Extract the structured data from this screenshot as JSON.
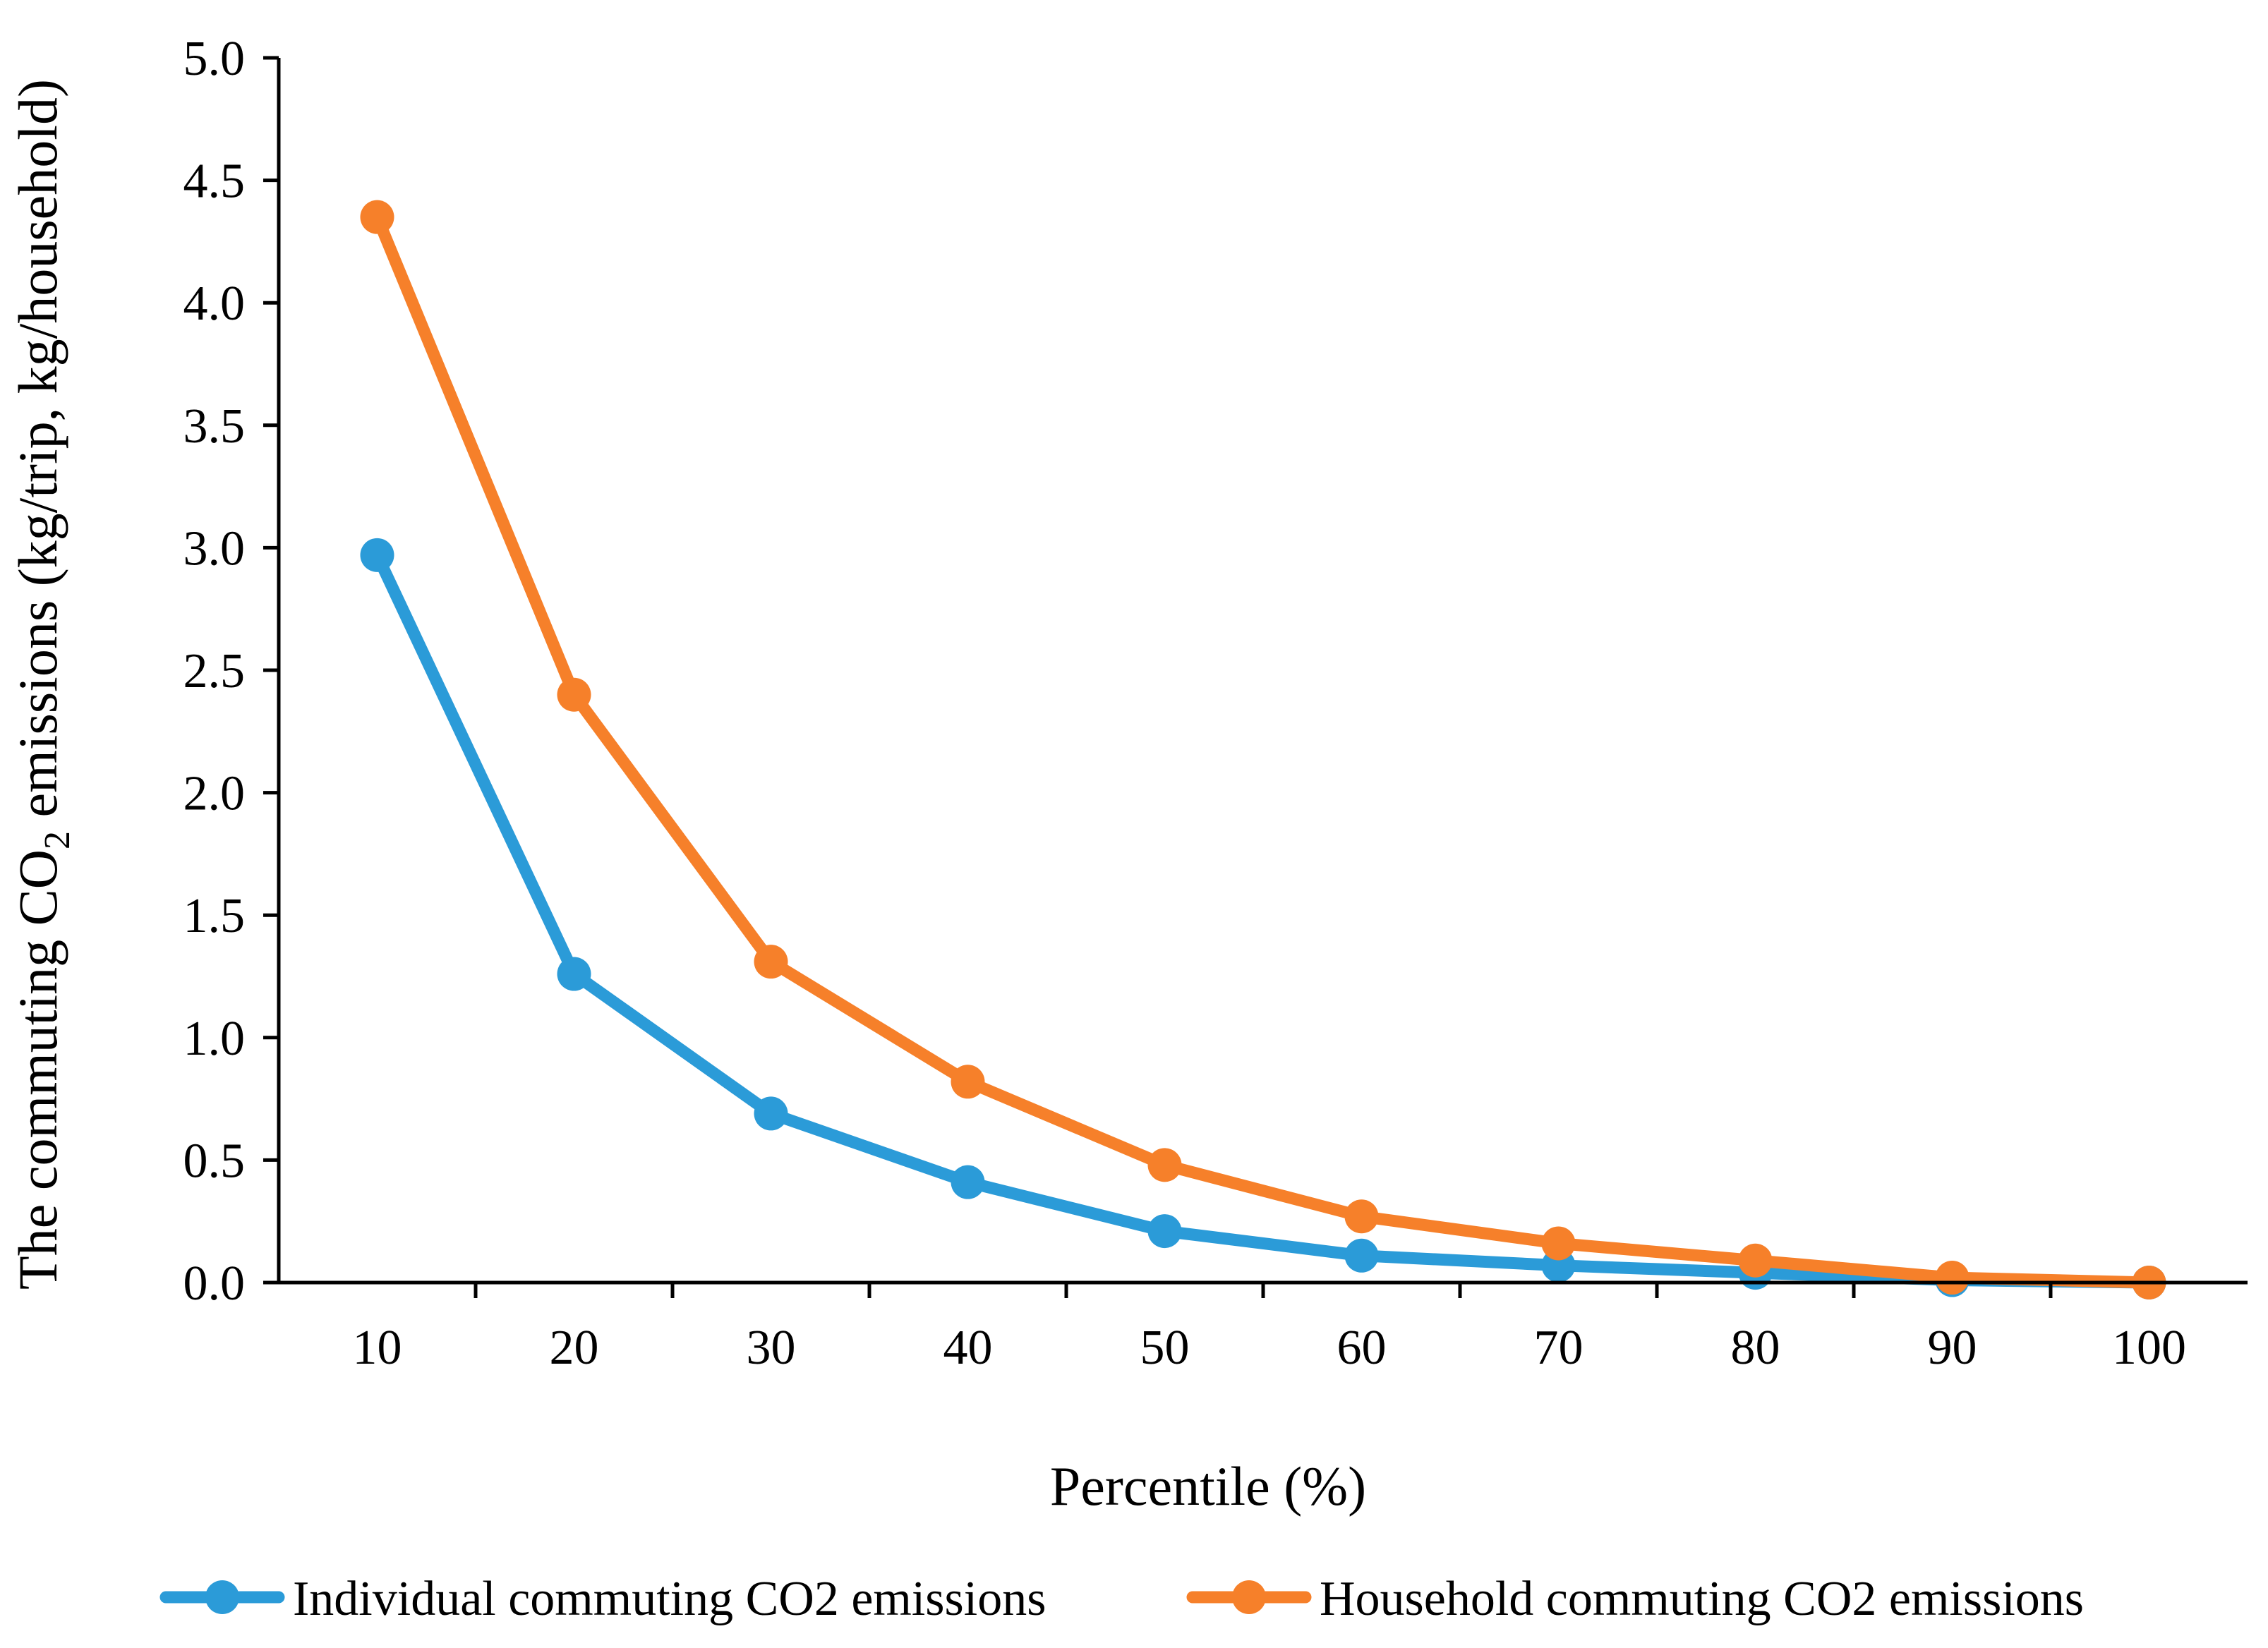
{
  "chart_data": {
    "type": "line",
    "title": "",
    "xlabel": "Percentile (%)",
    "ylabel": {
      "pre": "The commuting CO",
      "sub": "2",
      "post": " emissions (kg/trip, kg/household)"
    },
    "categories": [
      "10",
      "20",
      "30",
      "40",
      "50",
      "60",
      "70",
      "80",
      "90",
      "100"
    ],
    "x": [
      10,
      20,
      30,
      40,
      50,
      60,
      70,
      80,
      90,
      100
    ],
    "y_ticks": [
      "0.0",
      "0.5",
      "1.0",
      "1.5",
      "2.0",
      "2.5",
      "3.0",
      "3.5",
      "4.0",
      "4.5",
      "5.0"
    ],
    "ylim": [
      0,
      5
    ],
    "grid": false,
    "legend_position": "bottom",
    "series": [
      {
        "name": "Individual commuting CO2 emissions",
        "color": "#2b9bd8",
        "values": [
          2.97,
          1.26,
          0.69,
          0.41,
          0.21,
          0.11,
          0.07,
          0.04,
          0.01,
          0.0
        ]
      },
      {
        "name": "Household commuting CO2 emissions",
        "color": "#f6802a",
        "values": [
          4.35,
          2.4,
          1.31,
          0.82,
          0.48,
          0.27,
          0.16,
          0.09,
          0.02,
          0.0
        ]
      }
    ]
  }
}
